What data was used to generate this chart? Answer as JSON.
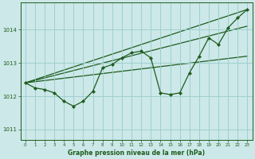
{
  "title": "Graphe pression niveau de la mer (hPa)",
  "bg_color": "#cce8e8",
  "grid_color": "#99cccc",
  "line_color": "#1e5c1e",
  "xlim": [
    -0.5,
    23.5
  ],
  "ylim": [
    1010.7,
    1014.8
  ],
  "yticks": [
    1011,
    1012,
    1013,
    1014
  ],
  "xticks": [
    0,
    1,
    2,
    3,
    4,
    5,
    6,
    7,
    8,
    9,
    10,
    11,
    12,
    13,
    14,
    15,
    16,
    17,
    18,
    19,
    20,
    21,
    22,
    23
  ],
  "series_main": {
    "x": [
      0,
      1,
      2,
      3,
      4,
      5,
      6,
      7,
      8,
      9,
      10,
      11,
      12,
      13,
      14,
      15,
      16,
      17,
      18,
      19,
      20,
      21,
      22,
      23
    ],
    "y": [
      1012.4,
      1012.25,
      1012.2,
      1012.1,
      1011.85,
      1011.7,
      1011.85,
      1012.15,
      1012.85,
      1012.95,
      1013.15,
      1013.3,
      1013.35,
      1013.15,
      1012.1,
      1012.05,
      1012.1,
      1012.7,
      1013.2,
      1013.75,
      1013.55,
      1014.05,
      1014.35,
      1014.6
    ]
  },
  "trend_lines": [
    {
      "x": [
        0,
        23
      ],
      "y": [
        1012.4,
        1014.6
      ]
    },
    {
      "x": [
        0,
        23
      ],
      "y": [
        1012.4,
        1014.1
      ]
    },
    {
      "x": [
        0,
        23
      ],
      "y": [
        1012.4,
        1013.2
      ]
    }
  ],
  "figsize": [
    3.2,
    2.0
  ],
  "dpi": 100
}
